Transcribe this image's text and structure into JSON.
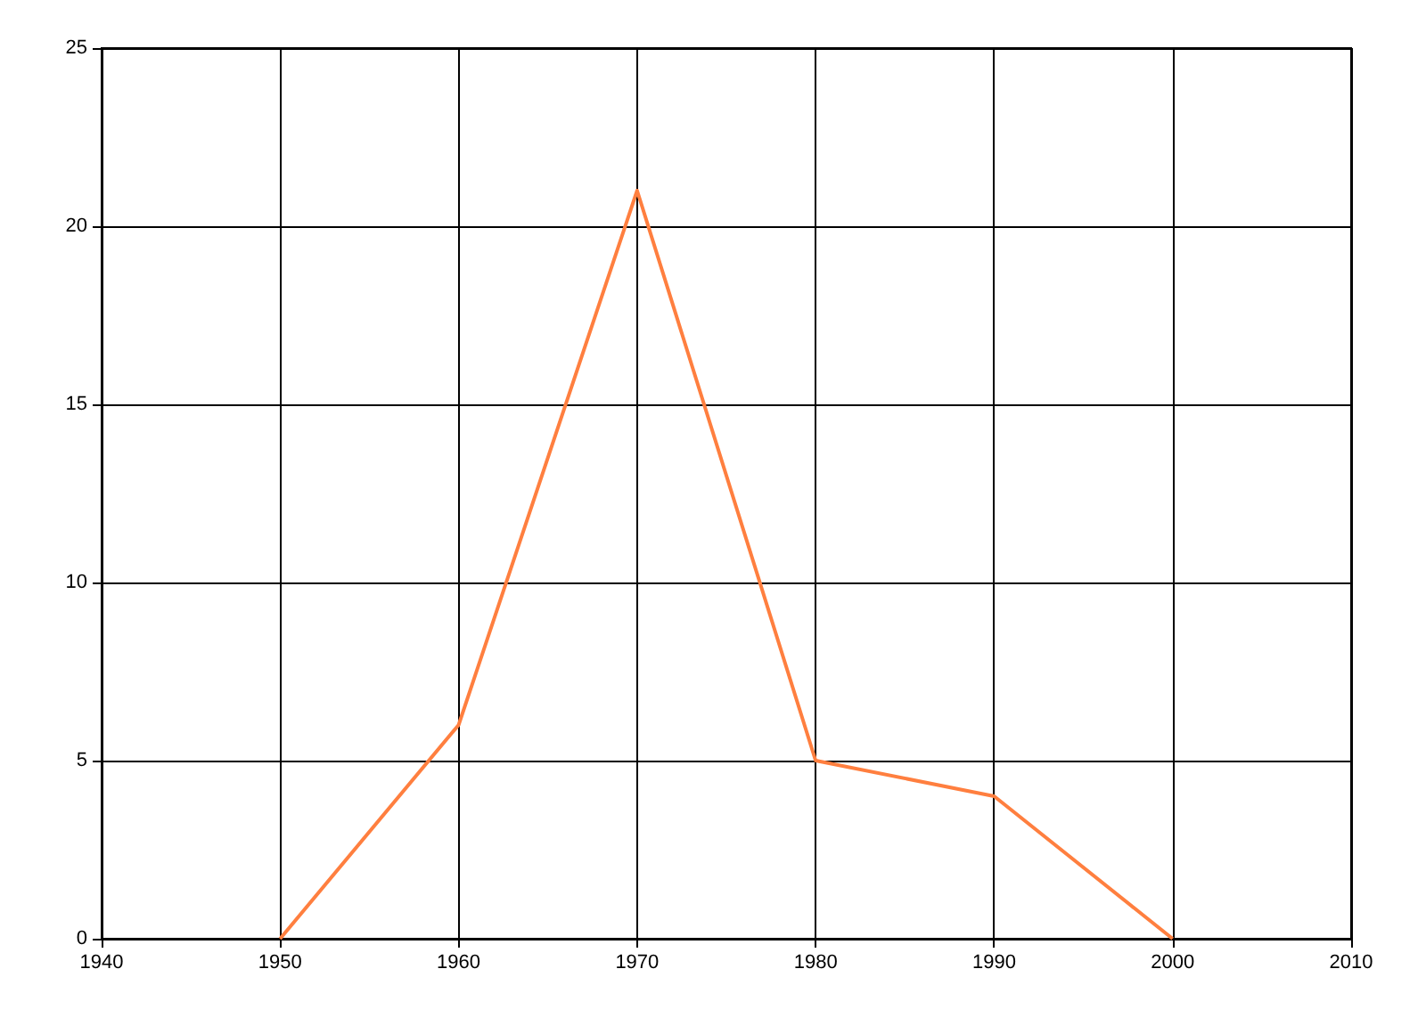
{
  "chart_data": {
    "type": "line",
    "x": [
      1950,
      1960,
      1970,
      1980,
      1990,
      2000
    ],
    "series": [
      {
        "color": "#ff7f3f",
        "values": [
          0,
          6,
          21,
          5,
          4,
          0
        ]
      }
    ],
    "xlim": [
      1940,
      2010
    ],
    "xticks": [
      1940,
      1950,
      1960,
      1970,
      1980,
      1990,
      2000,
      2010
    ],
    "ylim": [
      0,
      25
    ],
    "yticks": [
      0,
      5,
      10,
      15,
      20,
      25
    ],
    "grid": true,
    "marker": "none",
    "line_style": "solid"
  }
}
